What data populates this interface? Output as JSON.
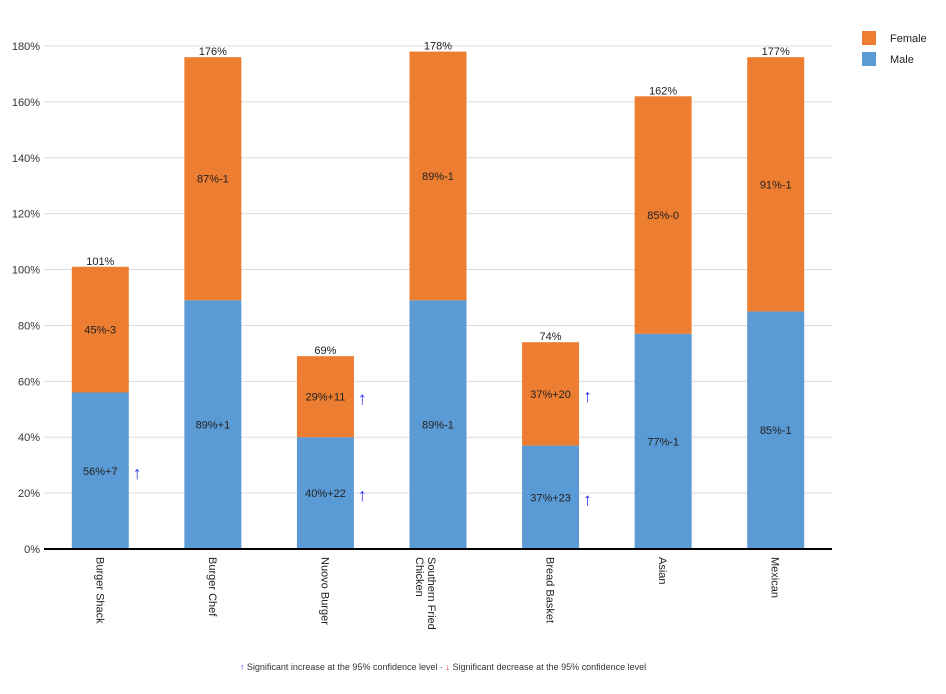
{
  "chart_data": {
    "type": "bar",
    "stacked": true,
    "categories": [
      "Burger Shack",
      "Burger Chef",
      "Nuovo Burger",
      "Southern Fried Chicken",
      "Bread Basket",
      "Asian",
      "Mexican"
    ],
    "series": [
      {
        "name": "Male",
        "color": "#5b9bd5",
        "values": [
          56,
          89,
          40,
          89,
          37,
          77,
          85
        ],
        "labels": [
          "56%+7",
          "89%+1",
          "40%+22",
          "89%-1",
          "37%+23",
          "77%-1",
          "85%-1"
        ],
        "significance": [
          "up",
          null,
          "up",
          null,
          "up",
          null,
          null
        ]
      },
      {
        "name": "Female",
        "color": "#ed7d31",
        "values": [
          45,
          87,
          29,
          89,
          37,
          85,
          91
        ],
        "labels": [
          "45%-3",
          "87%-1",
          "29%+11",
          "89%-1",
          "37%+20",
          "85%-0",
          "91%-1"
        ],
        "significance": [
          null,
          null,
          "up",
          null,
          "up",
          null,
          null
        ]
      }
    ],
    "totals": [
      "101%",
      "176%",
      "69%",
      "178%",
      "74%",
      "162%",
      "177%"
    ],
    "ylim": [
      0,
      180
    ],
    "yticks": [
      "0%",
      "20%",
      "40%",
      "60%",
      "80%",
      "100%",
      "120%",
      "140%",
      "160%",
      "180%"
    ],
    "grid": true,
    "legend_position": "top-right",
    "legend": [
      "Female",
      "Male"
    ],
    "significance_colors": {
      "up": "#3333ff",
      "down": "#e03030"
    }
  },
  "footnote": {
    "up_arrow": "↑",
    "up_text": "Significant increase at the 95% confidence level",
    "separator": " · ",
    "down_arrow": "↓",
    "down_text": "Significant decrease at the 95% confidence level"
  }
}
